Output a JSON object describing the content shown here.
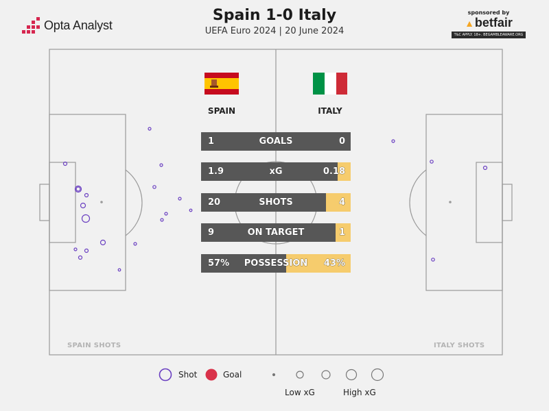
{
  "header": {
    "title": "Spain 1-0 Italy",
    "subtitle": "UEFA Euro 2024 | 20 June 2024",
    "logo_text": "Opta Analyst",
    "sponsor_top": "sponsored by",
    "sponsor_brand": "betfair",
    "sponsor_terms": "T&C APPLY. 18+. BEGAMBLEAWARE.ORG"
  },
  "teams": {
    "home": {
      "name": "SPAIN",
      "flag_colors": [
        "#c60b1e",
        "#ffc400",
        "#c60b1e"
      ]
    },
    "away": {
      "name": "ITALY",
      "flag_colors": [
        "#009246",
        "#ffffff",
        "#ce2b37"
      ]
    }
  },
  "stats": [
    {
      "label": "GOALS",
      "home": "1",
      "away": "0",
      "home_share": 1.0
    },
    {
      "label": "xG",
      "home": "1.9",
      "away": "0.18",
      "home_share": 0.913
    },
    {
      "label": "SHOTS",
      "home": "20",
      "away": "4",
      "home_share": 0.833
    },
    {
      "label": "ON TARGET",
      "home": "9",
      "away": "1",
      "home_share": 0.9
    },
    {
      "label": "POSSESSION",
      "home": "57%",
      "away": "43%",
      "home_share": 0.57
    }
  ],
  "corner_labels": {
    "home": "SPAIN SHOTS",
    "away": "ITALY SHOTS"
  },
  "legend": {
    "shot_label": "Shot",
    "goal_label": "Goal",
    "low_label": "Low xG",
    "high_label": "High xG",
    "shot_color": "#6a3fc1",
    "goal_color": "#d9324a"
  },
  "colors": {
    "stat_home_bar": "#575757",
    "stat_away_bar": "#f6cc6d",
    "pitch_line": "#9a9a9a",
    "background": "#f1f1f1"
  }
}
